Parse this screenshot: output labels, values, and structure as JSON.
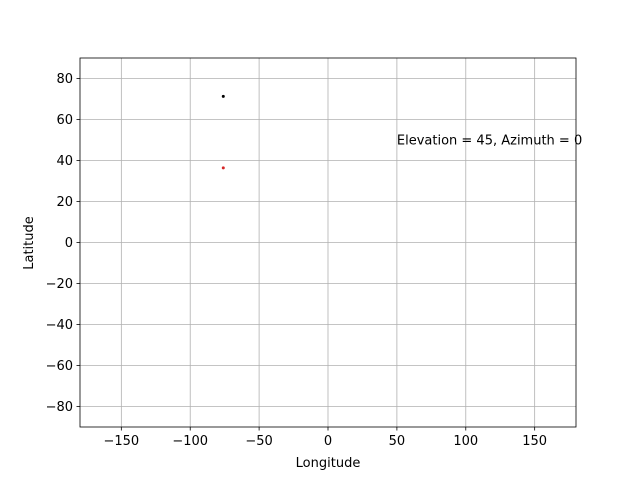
{
  "chart_data": {
    "type": "scatter",
    "title": "",
    "xlabel": "Longitude",
    "ylabel": "Latitude",
    "xlim": [
      -180,
      180
    ],
    "ylim": [
      -90,
      90
    ],
    "xticks": [
      -150,
      -100,
      -50,
      0,
      50,
      100,
      150
    ],
    "yticks": [
      -80,
      -60,
      -40,
      -20,
      0,
      20,
      40,
      60,
      80
    ],
    "xtick_labels": [
      "−150",
      "−100",
      "−50",
      "0",
      "50",
      "100",
      "150"
    ],
    "ytick_labels": [
      "−80",
      "−60",
      "−40",
      "−20",
      "0",
      "20",
      "40",
      "60",
      "80"
    ],
    "grid": true,
    "points": [
      {
        "x": -76,
        "y": 71.3,
        "color": "#000000"
      },
      {
        "x": -76,
        "y": 36.4,
        "color": "#d62728"
      }
    ],
    "annotations": [
      {
        "text": "Elevation = 45, Azimuth = 0",
        "x": 50,
        "y": 50
      }
    ],
    "colors": {
      "grid": "#b0b0b0",
      "axes": "#000000"
    }
  }
}
